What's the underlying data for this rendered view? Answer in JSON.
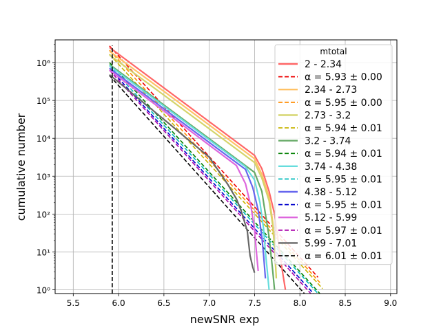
{
  "chart_data": {
    "type": "line",
    "xlabel": "newSNR exp",
    "ylabel": "cumulative number",
    "xlim": [
      5.3,
      9.07
    ],
    "ylim_log10": [
      -0.1,
      6.6
    ],
    "y_scale": "log",
    "grid": true,
    "x_ticks": [
      5.5,
      6.0,
      6.5,
      7.0,
      7.5,
      8.0,
      8.5,
      9.0
    ],
    "x_tick_labels": [
      "5.5",
      "6.0",
      "6.5",
      "7.0",
      "7.5",
      "8.0",
      "8.5",
      "9.0"
    ],
    "y_ticks_log10": [
      0,
      1,
      2,
      3,
      4,
      5,
      6
    ],
    "y_tick_labels": [
      "10⁰",
      "10¹",
      "10²",
      "10³",
      "10⁴",
      "10⁵",
      "10⁶"
    ],
    "legend": {
      "title": "mtotal",
      "placement": "top-right"
    },
    "threshold_x": 5.93,
    "series": [
      {
        "name": "2 - 2.34",
        "fit_label": "α = 5.93 ± 0.00",
        "color": "#ff6666",
        "fit_color": "#ee0000",
        "data": [
          [
            5.9,
            6.4
          ],
          [
            6.5,
            5.33
          ],
          [
            7.0,
            4.44
          ],
          [
            7.5,
            3.55
          ],
          [
            7.58,
            3.2
          ],
          [
            7.66,
            2.6
          ],
          [
            7.72,
            2.0
          ],
          [
            7.76,
            1.3
          ],
          [
            7.8,
            0.6
          ],
          [
            7.84,
            0.0
          ]
        ],
        "fit": [
          [
            5.9,
            6.44
          ],
          [
            8.2,
            0.33
          ]
        ]
      },
      {
        "name": "2.34 - 2.73",
        "fit_label": "α = 5.95 ± 0.00",
        "color": "#ffc266",
        "fit_color": "#ff8c00",
        "data": [
          [
            5.9,
            6.3
          ],
          [
            6.5,
            5.24
          ],
          [
            7.0,
            4.35
          ],
          [
            7.5,
            3.46
          ],
          [
            7.58,
            3.05
          ],
          [
            7.66,
            2.45
          ],
          [
            7.7,
            1.8
          ],
          [
            7.72,
            1.2
          ],
          [
            7.74,
            0.3
          ]
        ],
        "fit": [
          [
            5.9,
            6.33
          ],
          [
            8.22,
            0.19
          ]
        ]
      },
      {
        "name": "2.73 - 3.2",
        "fit_label": "α = 5.94 ± 0.01",
        "color": "#d4d46a",
        "fit_color": "#c8b400",
        "data": [
          [
            5.9,
            6.2
          ],
          [
            6.5,
            5.14
          ],
          [
            7.0,
            4.25
          ],
          [
            7.5,
            3.36
          ],
          [
            7.58,
            2.95
          ],
          [
            7.66,
            2.35
          ],
          [
            7.7,
            1.7
          ],
          [
            7.72,
            1.1
          ],
          [
            7.74,
            0.3
          ]
        ],
        "fit": [
          [
            5.9,
            6.22
          ],
          [
            8.25,
            0.03
          ]
        ]
      },
      {
        "name": "3.2 - 3.74",
        "fit_label": "α = 5.94 ± 0.01",
        "color": "#66aa66",
        "fit_color": "#008000",
        "data": [
          [
            5.9,
            5.95
          ],
          [
            6.5,
            4.88
          ],
          [
            7.0,
            3.99
          ],
          [
            7.5,
            3.1
          ],
          [
            7.58,
            2.6
          ],
          [
            7.62,
            2.0
          ],
          [
            7.66,
            1.4
          ],
          [
            7.7,
            0.5
          ],
          [
            7.72,
            0.0
          ]
        ],
        "fit": [
          [
            5.9,
            6.0
          ],
          [
            8.22,
            -0.1
          ]
        ]
      },
      {
        "name": "3.74 - 4.38",
        "fit_label": "α = 5.95 ± 0.01",
        "color": "#66dddd",
        "fit_color": "#00bbbb",
        "data": [
          [
            5.9,
            5.92
          ],
          [
            6.5,
            4.85
          ],
          [
            7.0,
            3.96
          ],
          [
            7.4,
            3.25
          ],
          [
            7.5,
            2.9
          ],
          [
            7.56,
            2.3
          ],
          [
            7.6,
            1.6
          ],
          [
            7.62,
            1.0
          ],
          [
            7.64,
            0.5
          ],
          [
            7.66,
            0.0
          ]
        ],
        "fit": [
          [
            5.9,
            5.92
          ],
          [
            8.2,
            -0.1
          ]
        ]
      },
      {
        "name": "4.38 - 5.12",
        "fit_label": "α = 5.95 ± 0.01",
        "color": "#6666ee",
        "fit_color": "#0000cc",
        "data": [
          [
            5.9,
            5.85
          ],
          [
            6.5,
            4.78
          ],
          [
            7.0,
            3.89
          ],
          [
            7.4,
            3.18
          ],
          [
            7.48,
            2.7
          ],
          [
            7.54,
            2.1
          ],
          [
            7.58,
            1.4
          ],
          [
            7.6,
            0.9
          ],
          [
            7.62,
            0.3
          ]
        ],
        "fit": [
          [
            5.9,
            5.85
          ],
          [
            8.15,
            -0.1
          ]
        ]
      },
      {
        "name": "5.12 - 5.99",
        "fit_label": "α = 5.97 ± 0.01",
        "color": "#dd66dd",
        "fit_color": "#aa00aa",
        "data": [
          [
            5.9,
            5.8
          ],
          [
            6.5,
            4.72
          ],
          [
            7.0,
            3.82
          ],
          [
            7.3,
            3.28
          ],
          [
            7.4,
            2.8
          ],
          [
            7.46,
            2.2
          ],
          [
            7.5,
            1.6
          ],
          [
            7.52,
            1.0
          ],
          [
            7.54,
            0.5
          ]
        ],
        "fit": [
          [
            5.9,
            5.8
          ],
          [
            8.12,
            -0.1
          ]
        ]
      },
      {
        "name": "5.99 - 7.01",
        "fit_label": "α = 6.01 ± 0.01",
        "color": "#666666",
        "fit_color": "#000000",
        "data": [
          [
            5.9,
            5.68
          ],
          [
            6.5,
            4.5
          ],
          [
            7.0,
            3.5
          ],
          [
            7.2,
            2.8
          ],
          [
            7.3,
            2.4
          ],
          [
            7.35,
            2.1
          ],
          [
            7.42,
            1.55
          ],
          [
            7.45,
            0.9
          ],
          [
            7.48,
            0.6
          ],
          [
            7.5,
            0.45
          ]
        ],
        "fit": [
          [
            5.9,
            5.66
          ],
          [
            8.05,
            -0.1
          ]
        ]
      }
    ]
  }
}
